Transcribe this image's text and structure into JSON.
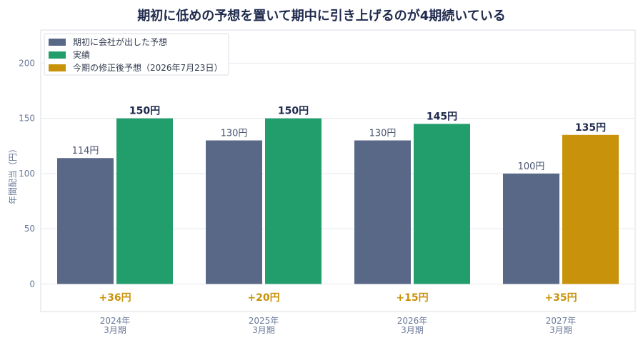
{
  "chart_data": {
    "type": "bar",
    "title": "期初に低めの予想を置いて期中に引き上げるのが4期続いている",
    "ylabel": "年間配当（円）",
    "ylim": [
      -25,
      230
    ],
    "yticks": [
      0,
      50,
      100,
      150,
      200
    ],
    "grid": true,
    "legend_position": "top-left",
    "categories": [
      [
        "2024年",
        "3月期"
      ],
      [
        "2025年",
        "3月期"
      ],
      [
        "2026年",
        "3月期"
      ],
      [
        "2027年",
        "3月期"
      ]
    ],
    "series": [
      {
        "name": "期初に会社が出した予想",
        "values": [
          114,
          130,
          130,
          100
        ],
        "colors": [
          "#5a6888",
          "#5a6888",
          "#5a6888",
          "#5a6888"
        ],
        "labels": [
          "114円",
          "130円",
          "130円",
          "100円"
        ]
      },
      {
        "name": "実績",
        "values": [
          150,
          150,
          145,
          null
        ],
        "colors": [
          "#229e6c",
          "#229e6c",
          "#229e6c",
          null
        ],
        "labels": [
          "150円",
          "150円",
          "145円",
          ""
        ]
      },
      {
        "name": "今期の修正後予想（2026年7月23日）",
        "values": [
          null,
          null,
          null,
          135
        ],
        "colors": [
          null,
          null,
          null,
          "#c8920a"
        ],
        "labels": [
          "",
          "",
          "",
          "135円"
        ]
      }
    ],
    "differences": [
      "+36円",
      "+20円",
      "+15円",
      "+35円"
    ],
    "difference_color": "#c8920a",
    "legend_colors": [
      "#5a6888",
      "#229e6c",
      "#c8920a"
    ]
  }
}
